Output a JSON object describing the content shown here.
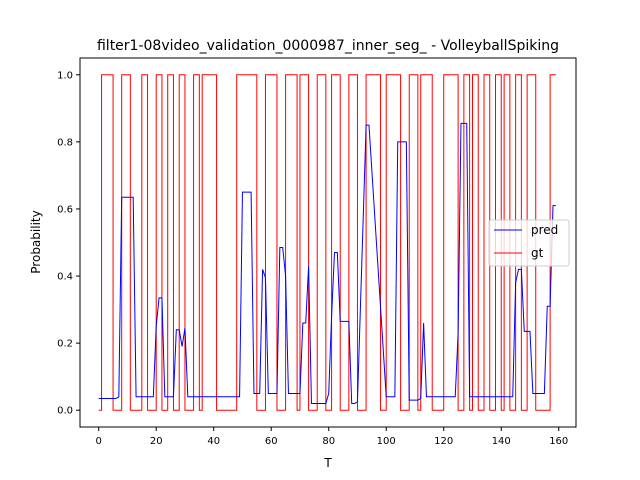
{
  "chart_data": {
    "type": "line",
    "title": "filter1-08video_validation_0000987_inner_seg_ - VolleyballSpiking",
    "xlabel": "T",
    "ylabel": "Probability",
    "xlim": [
      -6.5,
      166
    ],
    "ylim": [
      -0.05,
      1.05
    ],
    "xticks": [
      0,
      20,
      40,
      60,
      80,
      100,
      120,
      140,
      160
    ],
    "xtick_labels": [
      "0",
      "20",
      "40",
      "60",
      "80",
      "100",
      "120",
      "140",
      "160"
    ],
    "yticks": [
      0.0,
      0.2,
      0.4,
      0.6,
      0.8,
      1.0
    ],
    "ytick_labels": [
      "0.0",
      "0.2",
      "0.4",
      "0.6",
      "0.8",
      "1.0"
    ],
    "legend_position": "center right",
    "grid": false,
    "series": [
      {
        "name": "pred",
        "color": "#0000ff",
        "x": [
          0,
          6,
          7,
          8,
          12,
          13,
          19,
          20,
          21,
          22,
          23,
          26,
          27,
          28,
          29,
          30,
          31,
          34,
          49,
          50,
          53,
          54,
          56,
          57,
          58,
          59,
          62,
          63,
          64,
          65,
          66,
          70,
          71,
          72,
          73,
          74,
          79,
          80,
          81,
          82,
          83,
          84,
          87,
          88,
          89,
          90,
          93,
          94,
          100,
          101,
          102,
          103,
          104,
          107,
          108,
          111,
          112,
          113,
          114,
          115,
          124,
          125,
          126,
          127,
          128,
          129,
          130,
          133,
          134,
          144,
          145,
          146,
          147,
          148,
          149,
          150,
          151,
          155,
          156,
          157,
          158,
          159
        ],
        "y": [
          0.035,
          0.035,
          0.04,
          0.635,
          0.635,
          0.04,
          0.04,
          0.25,
          0.335,
          0.335,
          0.04,
          0.04,
          0.24,
          0.24,
          0.19,
          0.245,
          0.04,
          0.04,
          0.04,
          0.65,
          0.65,
          0.05,
          0.05,
          0.42,
          0.395,
          0.05,
          0.05,
          0.485,
          0.485,
          0.4,
          0.05,
          0.05,
          0.26,
          0.26,
          0.43,
          0.02,
          0.02,
          0.05,
          0.28,
          0.47,
          0.47,
          0.265,
          0.265,
          0.02,
          0.02,
          0.025,
          0.85,
          0.85,
          0.04,
          0.04,
          0.04,
          0.04,
          0.8,
          0.8,
          0.03,
          0.03,
          0.035,
          0.26,
          0.04,
          0.04,
          0.04,
          0.23,
          0.855,
          0.855,
          0.855,
          0.04,
          0.04,
          0.04,
          0.04,
          0.04,
          0.38,
          0.42,
          0.42,
          0.235,
          0.235,
          0.235,
          0.05,
          0.05,
          0.31,
          0.31,
          0.61,
          0.61
        ]
      },
      {
        "name": "gt",
        "color": "#ff0000",
        "segments": [
          [
            0,
            1,
            0
          ],
          [
            1,
            5,
            1
          ],
          [
            5,
            8,
            0
          ],
          [
            8,
            11,
            1
          ],
          [
            11,
            15,
            0
          ],
          [
            15,
            17,
            1
          ],
          [
            17,
            20,
            0
          ],
          [
            20,
            22,
            1
          ],
          [
            22,
            24,
            0
          ],
          [
            24,
            26,
            1
          ],
          [
            26,
            28,
            0
          ],
          [
            28,
            30,
            1
          ],
          [
            30,
            33,
            0
          ],
          [
            33,
            35,
            1
          ],
          [
            35,
            36,
            0
          ],
          [
            36,
            41,
            1
          ],
          [
            41,
            48,
            0
          ],
          [
            48,
            55,
            1
          ],
          [
            55,
            58,
            0
          ],
          [
            58,
            62,
            1
          ],
          [
            62,
            65,
            0
          ],
          [
            65,
            69,
            1
          ],
          [
            69,
            70,
            0
          ],
          [
            70,
            73,
            1
          ],
          [
            73,
            76,
            0
          ],
          [
            76,
            79,
            1
          ],
          [
            79,
            81,
            0
          ],
          [
            81,
            84,
            1
          ],
          [
            84,
            87,
            0
          ],
          [
            87,
            90,
            1
          ],
          [
            90,
            93,
            0
          ],
          [
            93,
            98,
            1
          ],
          [
            98,
            100,
            0
          ],
          [
            100,
            105,
            1
          ],
          [
            105,
            108,
            0
          ],
          [
            108,
            111,
            1
          ],
          [
            111,
            112,
            0
          ],
          [
            112,
            116,
            1
          ],
          [
            116,
            120,
            0
          ],
          [
            120,
            125,
            1
          ],
          [
            125,
            127,
            0
          ],
          [
            127,
            129,
            1
          ],
          [
            129,
            130,
            0
          ],
          [
            130,
            132,
            1
          ],
          [
            132,
            134,
            0
          ],
          [
            134,
            136,
            1
          ],
          [
            136,
            138,
            0
          ],
          [
            138,
            140,
            1
          ],
          [
            140,
            141,
            0
          ],
          [
            141,
            143,
            1
          ],
          [
            143,
            145,
            0
          ],
          [
            145,
            147,
            1
          ],
          [
            147,
            149,
            0
          ],
          [
            149,
            152,
            1
          ],
          [
            152,
            157,
            0
          ],
          [
            157,
            159,
            1
          ]
        ]
      }
    ]
  }
}
